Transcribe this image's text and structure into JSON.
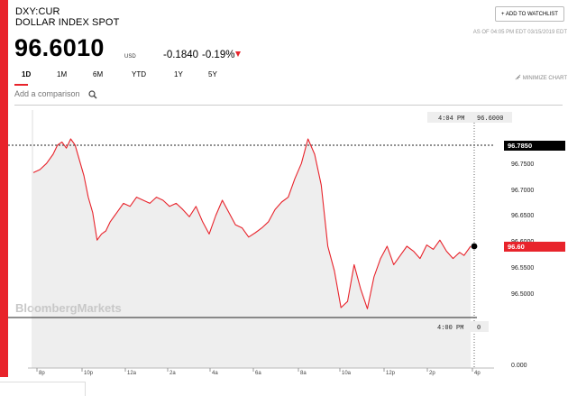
{
  "header": {
    "symbol": "DXY:CUR",
    "name": "DOLLAR INDEX SPOT",
    "price": "96.6010",
    "currency": "USD",
    "change": "-0.1840",
    "change_pct": "-0.19%",
    "watchlist_label": "+ ADD TO WATCHLIST",
    "as_of": "AS OF 04:05 PM EDT 03/15/2019 EDT"
  },
  "tabs": [
    "1D",
    "1M",
    "6M",
    "YTD",
    "1Y",
    "5Y"
  ],
  "active_tab": "1D",
  "minimize_label": "MINIMIZE CHART",
  "compare": {
    "placeholder": "Add a comparison"
  },
  "colors": {
    "accent": "#e8232b",
    "line": "#e8232b",
    "fill": "#eeeeee"
  },
  "chart_data": {
    "type": "line",
    "watermark": "BloombergMarkets",
    "x_ticks": [
      "8p",
      "10p",
      "12a",
      "2a",
      "4a",
      "6a",
      "8a",
      "10a",
      "12p",
      "2p",
      "4p"
    ],
    "y_ticks": [
      "96.7500",
      "96.7000",
      "96.6500",
      "96.6000",
      "96.5500",
      "96.5000"
    ],
    "ylim": [
      96.472,
      96.8
    ],
    "xlim": [
      19.5,
      40.2
    ],
    "high_label": "96.7850",
    "last_label": "96.60",
    "top_label_time": "4:04 PM",
    "top_label_value": "96.6000",
    "bottom_label_time": "4:00 PM",
    "bottom_label_value": "0",
    "volume_label": "0.000",
    "series": [
      {
        "x": [
          20.0,
          20.3,
          20.6,
          20.9,
          21.1,
          21.3,
          21.5,
          21.7,
          21.9,
          22.1,
          22.3,
          22.5,
          22.7,
          22.9,
          23.1,
          23.3,
          23.5,
          23.7,
          23.9,
          24.1,
          24.4,
          24.7,
          25.0,
          25.3,
          25.6,
          25.9,
          26.2,
          26.5,
          26.8,
          27.1,
          27.4,
          27.7,
          28.0,
          28.3,
          28.6,
          28.9,
          29.2,
          29.5,
          29.8,
          30.1,
          30.4,
          30.7,
          31.0,
          31.3,
          31.6,
          31.9,
          32.2,
          32.5,
          32.8,
          33.1,
          33.4,
          33.7,
          34.0,
          34.3,
          34.6,
          34.9,
          35.2,
          35.5,
          35.8,
          36.1,
          36.4,
          36.7,
          37.0,
          37.3,
          37.6,
          37.9,
          38.2,
          38.5,
          38.8,
          39.1,
          39.4,
          39.6,
          39.9
        ],
        "values": [
          96.72,
          96.725,
          96.735,
          96.75,
          96.765,
          96.77,
          96.76,
          96.775,
          96.765,
          96.74,
          96.715,
          96.68,
          96.655,
          96.61,
          96.62,
          96.625,
          96.64,
          96.65,
          96.66,
          96.67,
          96.665,
          96.68,
          96.675,
          96.67,
          96.68,
          96.675,
          96.665,
          96.67,
          96.66,
          96.648,
          96.665,
          96.64,
          96.62,
          96.65,
          96.675,
          96.655,
          96.635,
          96.63,
          96.615,
          96.622,
          96.63,
          96.64,
          96.66,
          96.672,
          96.68,
          96.71,
          96.735,
          96.775,
          96.75,
          96.7,
          96.6,
          96.56,
          96.5,
          96.51,
          96.57,
          96.53,
          96.498,
          96.55,
          96.58,
          96.6,
          96.57,
          96.585,
          96.6,
          96.592,
          96.58,
          96.602,
          96.595,
          96.61,
          96.592,
          96.58,
          96.59,
          96.585,
          96.6
        ]
      }
    ]
  }
}
